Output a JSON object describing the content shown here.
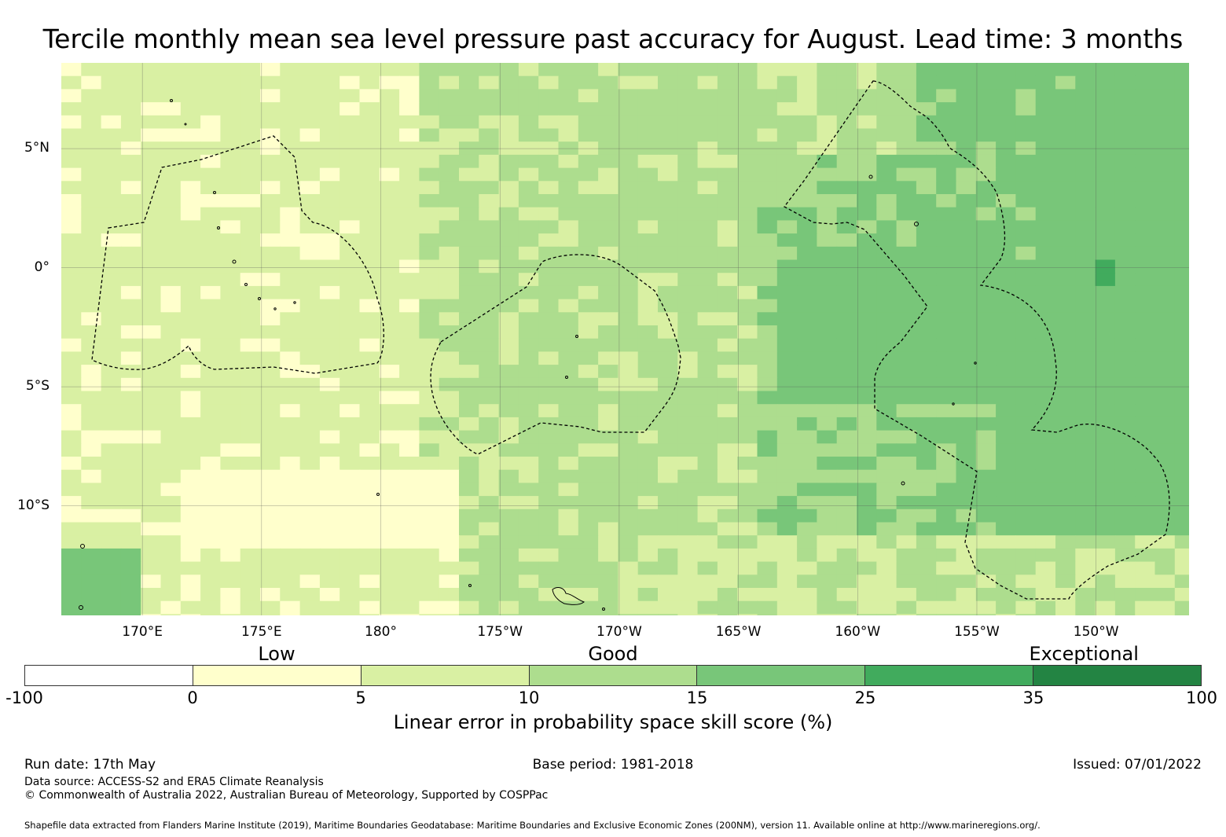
{
  "title": "Tercile monthly mean sea level pressure past accuracy for August. Lead time: 3 months",
  "map": {
    "lat_labels": [
      {
        "label": "5°N",
        "lat": 5
      },
      {
        "label": "0°",
        "lat": 0
      },
      {
        "label": "5°S",
        "lat": -5
      },
      {
        "label": "10°S",
        "lat": -10
      }
    ],
    "lon_labels": [
      {
        "label": "170°E",
        "lon": 170
      },
      {
        "label": "175°E",
        "lon": 175
      },
      {
        "label": "180°",
        "lon": 180
      },
      {
        "label": "175°W",
        "lon": 185
      },
      {
        "label": "170°W",
        "lon": 190
      },
      {
        "label": "165°W",
        "lon": 195
      },
      {
        "label": "160°W",
        "lon": 200
      },
      {
        "label": "155°W",
        "lon": 205
      },
      {
        "label": "150°W",
        "lon": 210
      }
    ],
    "extent": {
      "lon_min": 166.6,
      "lon_max": 213.9,
      "lat_min": -14.6,
      "lat_max": 8.6
    },
    "grid_lines": true,
    "field": "skill score (%) gridded over ocean; mostly 5–10 in the west, 10–15 centre, 15–25 in the east, small patch of 25–35 near 150°W 0°"
  },
  "colorbar": {
    "categories": [
      {
        "label": "Low",
        "value_center": 0
      },
      {
        "label": "Good",
        "value_center": 10
      },
      {
        "label": "Exceptional",
        "value_center": 35
      }
    ],
    "colors": [
      "#ffffff",
      "#ffffcc",
      "#d9f0a3",
      "#addd8e",
      "#78c679",
      "#41ab5d",
      "#238443"
    ],
    "ticks": [
      "-100",
      "0",
      "5",
      "10",
      "15",
      "25",
      "35",
      "100"
    ],
    "title": "Linear error in probability space skill score (%)"
  },
  "footer": {
    "run_date": "Run date: 17th May",
    "base_period": "Base period: 1981-2018",
    "issued": "Issued: 07/01/2022",
    "data_source": "Data source: ACCESS-S2 and ERA5 Climate Reanalysis",
    "copyright": "© Commonwealth of Australia 2022, Australian Bureau of Meteorology, Supported by COSPPac",
    "shapefile": "Shapefile data extracted from Flanders Marine Institute (2019), Maritime Boundaries Geodatabase: Maritime Boundaries and Exclusive Economic Zones (200NM), version 11. Available online at http://www.marineregions.org/."
  }
}
